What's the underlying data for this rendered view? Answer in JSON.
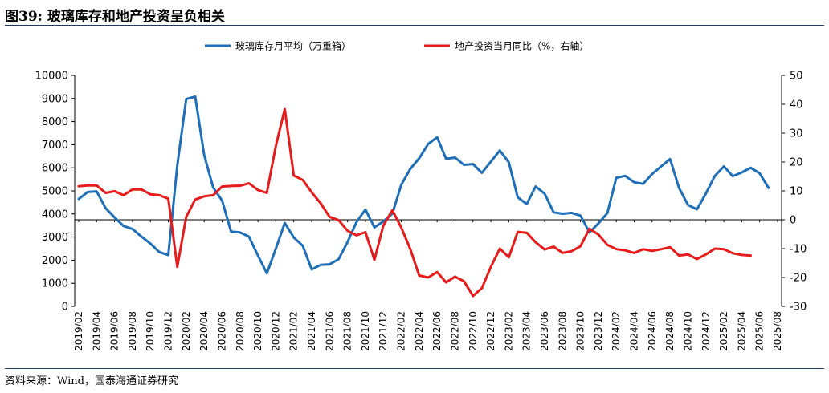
{
  "figure": {
    "title": "图39: 玻璃库存和地产投资呈负相关",
    "source": "资料来源：Wind，国泰海通证券研究"
  },
  "chart_data": {
    "type": "line",
    "legend_position": "top",
    "grid": false,
    "x_ticks": [
      "2019/02",
      "2019/04",
      "2019/06",
      "2019/08",
      "2019/10",
      "2019/12",
      "2020/02",
      "2020/04",
      "2020/06",
      "2020/08",
      "2020/10",
      "2020/12",
      "2021/02",
      "2021/04",
      "2021/06",
      "2021/08",
      "2021/10",
      "2021/12",
      "2022/02",
      "2022/04",
      "2022/06",
      "2022/08",
      "2022/10",
      "2022/12",
      "2023/02",
      "2023/04",
      "2023/06",
      "2023/08",
      "2023/10",
      "2023/12",
      "2024/02",
      "2024/04",
      "2024/06",
      "2024/08",
      "2024/10",
      "2024/12",
      "2025/02",
      "2025/04",
      "2025/06",
      "2025/08"
    ],
    "y_left": {
      "range": [
        0,
        10000
      ],
      "ticks": [
        0,
        1000,
        2000,
        3000,
        4000,
        5000,
        6000,
        7000,
        8000,
        9000,
        10000
      ]
    },
    "y_right": {
      "range": [
        -30,
        50
      ],
      "ticks": [
        -30,
        -20,
        -10,
        0,
        10,
        20,
        30,
        40,
        50
      ]
    },
    "series": [
      {
        "name": "玻璃库存月平均（万重箱）",
        "axis": "left",
        "color": "#1f6fb8",
        "start": "2019/02",
        "values": [
          4650,
          4950,
          4980,
          4250,
          3850,
          3480,
          3350,
          3020,
          2720,
          2350,
          2220,
          6100,
          8980,
          9080,
          6550,
          5150,
          4580,
          3240,
          3200,
          3020,
          2200,
          1430,
          2500,
          3610,
          2980,
          2630,
          1600,
          1800,
          1820,
          2040,
          2780,
          3650,
          4190,
          3420,
          3680,
          4010,
          5260,
          5950,
          6410,
          7030,
          7320,
          6390,
          6440,
          6130,
          6160,
          5780,
          6270,
          6750,
          6240,
          4720,
          4430,
          5190,
          4880,
          4070,
          4010,
          4050,
          3930,
          3200,
          3590,
          4040,
          5570,
          5650,
          5370,
          5310,
          5730,
          6060,
          6380,
          5130,
          4390,
          4200,
          4890,
          5650,
          6060,
          5640,
          5800,
          6000,
          5760,
          5130
        ]
      },
      {
        "name": "地产投资当月同比（%，右轴）",
        "axis": "right",
        "color": "#e61b1b",
        "start": "2019/02",
        "values": [
          11.6,
          11.9,
          11.9,
          9.3,
          9.9,
          8.5,
          10.5,
          10.5,
          8.8,
          8.5,
          7.3,
          -16.3,
          1.0,
          7.0,
          8.1,
          8.5,
          11.5,
          11.7,
          11.8,
          12.6,
          10.3,
          9.3,
          25.6,
          38.3,
          15.3,
          13.8,
          9.5,
          5.7,
          1.0,
          -0.1,
          -3.8,
          -5.4,
          -4.3,
          -13.9,
          -2.0,
          3.3,
          -2.7,
          -10.1,
          -19.3,
          -20.0,
          -18.1,
          -21.7,
          -19.7,
          -21.3,
          -26.4,
          -23.7,
          -16.3,
          -10.0,
          -13.0,
          -4.2,
          -4.5,
          -7.8,
          -10.3,
          -9.3,
          -11.5,
          -10.9,
          -9.2,
          -3.1,
          -5.1,
          -8.7,
          -10.2,
          -10.6,
          -11.5,
          -10.2,
          -10.8,
          -10.2,
          -9.5,
          -12.4,
          -12.0,
          -13.6,
          -12.0,
          -10.0,
          -10.2,
          -11.6,
          -12.2,
          -12.4
        ]
      }
    ]
  }
}
